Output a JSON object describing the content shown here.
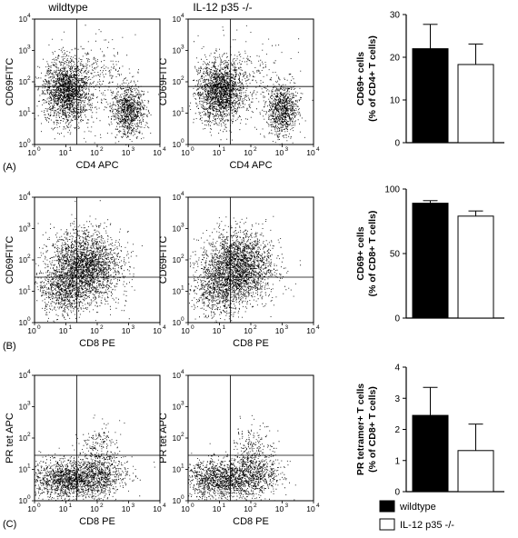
{
  "headers": {
    "wildtype": "wildtype",
    "knockout": "IL-12 p35 -/-"
  },
  "panel_labels": [
    "(A)",
    "(B)",
    "(C)"
  ],
  "flow_panels": [
    {
      "panel": "A",
      "ylabel": "CD69FITC",
      "xlabel": "CD4 APC",
      "pattern": "cd4"
    },
    {
      "panel": "B",
      "ylabel": "CD69FITC",
      "xlabel": "CD8 PE",
      "pattern": "cd8"
    },
    {
      "panel": "C",
      "ylabel": "PR tet APC",
      "xlabel": "CD8 PE",
      "pattern": "tet"
    }
  ],
  "flow_axis": {
    "x_ticks": [
      {
        "b": "10",
        "e": "0"
      },
      {
        "b": "10",
        "e": "1"
      },
      {
        "b": "10",
        "e": "2"
      },
      {
        "b": "10",
        "e": "3"
      },
      {
        "b": "10",
        "e": "4"
      }
    ],
    "y_ticks": [
      {
        "b": "10",
        "e": "0"
      },
      {
        "b": "10",
        "e": "1"
      },
      {
        "b": "10",
        "e": "2"
      },
      {
        "b": "10",
        "e": "3"
      },
      {
        "b": "10",
        "e": "4"
      }
    ]
  },
  "chart_data": [
    {
      "type": "bar",
      "panel": "A",
      "categories": [
        "wildtype",
        "IL-12 p35 -/-"
      ],
      "values": [
        22,
        18.3
      ],
      "errors": [
        5.7,
        4.8
      ],
      "ylabel": "CD69+ cells",
      "ylabel2": "(% of CD4+ T cells)",
      "ylim": [
        0,
        30
      ],
      "yticks": [
        0,
        10,
        20,
        30
      ],
      "colors": [
        "#000000",
        "#ffffff"
      ]
    },
    {
      "type": "bar",
      "panel": "B",
      "categories": [
        "wildtype",
        "IL-12 p35 -/-"
      ],
      "values": [
        89,
        79
      ],
      "errors": [
        2,
        4
      ],
      "ylabel": "CD69+ cells",
      "ylabel2": "(% of CD8+ T cells)",
      "ylim": [
        0,
        100
      ],
      "yticks": [
        0,
        50,
        100
      ],
      "colors": [
        "#000000",
        "#ffffff"
      ]
    },
    {
      "type": "bar",
      "panel": "C",
      "categories": [
        "wildtype",
        "IL-12 p35 -/-"
      ],
      "values": [
        2.45,
        1.32
      ],
      "errors": [
        0.9,
        0.85
      ],
      "ylabel": "PR tetramer+ T cells",
      "ylabel2": "(% of CD8+ T cells)",
      "ylim": [
        0,
        4
      ],
      "yticks": [
        0,
        1,
        2,
        3,
        4
      ],
      "colors": [
        "#000000",
        "#ffffff"
      ]
    }
  ],
  "legend": [
    {
      "label": "wildtype",
      "color": "#000000"
    },
    {
      "label": "IL-12 p35 -/-",
      "color": "#ffffff"
    }
  ]
}
